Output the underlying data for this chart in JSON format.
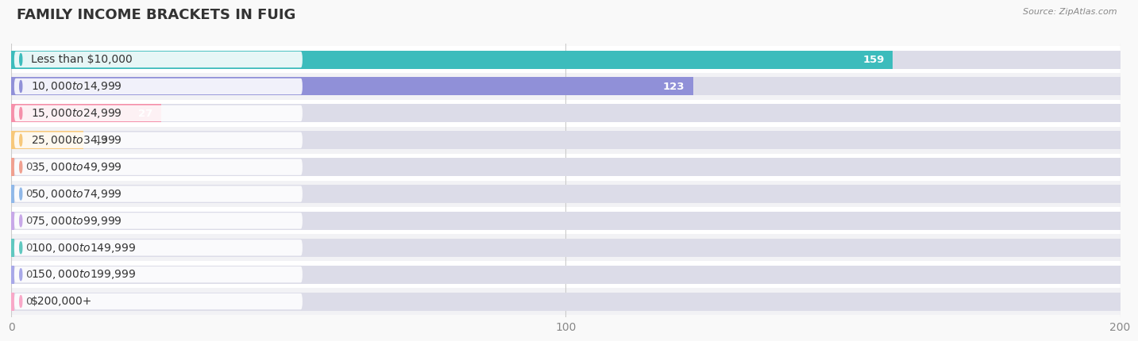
{
  "title": "Family Income Brackets in Fuig",
  "source": "Source: ZipAtlas.com",
  "categories": [
    "Less than $10,000",
    "$10,000 to $14,999",
    "$15,000 to $24,999",
    "$25,000 to $34,999",
    "$35,000 to $49,999",
    "$50,000 to $74,999",
    "$75,000 to $99,999",
    "$100,000 to $149,999",
    "$150,000 to $199,999",
    "$200,000+"
  ],
  "values": [
    159,
    123,
    27,
    13,
    0,
    0,
    0,
    0,
    0,
    0
  ],
  "bar_colors": [
    "#3cbcbc",
    "#9090d8",
    "#f590aa",
    "#f7c87a",
    "#f0a090",
    "#90b8e8",
    "#c8a8e8",
    "#60c8c0",
    "#a8a8e8",
    "#f8a8c8"
  ],
  "xlim": [
    0,
    200
  ],
  "xticks": [
    0,
    100,
    200
  ],
  "background_color": "#f9f9f9",
  "row_bg_even": "#ffffff",
  "row_bg_odd": "#f2f2f5",
  "bar_bg_color": "#dcdce8",
  "title_fontsize": 13,
  "label_fontsize": 10,
  "value_fontsize": 9.5
}
